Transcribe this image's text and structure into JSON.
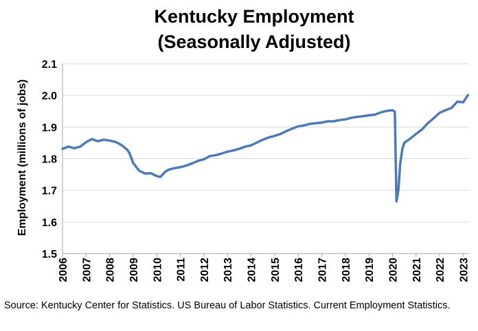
{
  "chart_data": {
    "type": "line",
    "title_line1": "Kentucky Employment",
    "title_line2": "(Seasonally Adjusted)",
    "xlabel": "",
    "ylabel": "Employment (millions of jobs)",
    "ylim": [
      1.5,
      2.1
    ],
    "yticks": [
      "1.5",
      "1.6",
      "1.7",
      "1.8",
      "1.9",
      "2.0",
      "2.1"
    ],
    "xlim": [
      2006,
      2023.25
    ],
    "xticks": [
      "2006",
      "2007",
      "2008",
      "2009",
      "2010",
      "2011",
      "2012",
      "2013",
      "2014",
      "2015",
      "2016",
      "2017",
      "2018",
      "2019",
      "2020",
      "2021",
      "2022",
      "2023"
    ],
    "grid": true,
    "line_color": "#4a7ab8",
    "series": [
      {
        "x": [
          2006.0,
          2006.25,
          2006.5,
          2006.75,
          2007.0,
          2007.25,
          2007.5,
          2007.75,
          2008.0,
          2008.25,
          2008.5,
          2008.75,
          2008.85,
          2009.0,
          2009.25,
          2009.5,
          2009.75,
          2010.0,
          2010.15,
          2010.35,
          2010.5,
          2010.75,
          2011.0,
          2011.25,
          2011.5,
          2011.75,
          2012.0,
          2012.25,
          2012.5,
          2012.75,
          2013.0,
          2013.25,
          2013.5,
          2013.75,
          2014.0,
          2014.25,
          2014.5,
          2014.75,
          2015.0,
          2015.25,
          2015.5,
          2015.75,
          2016.0,
          2016.25,
          2016.5,
          2016.75,
          2017.0,
          2017.25,
          2017.5,
          2017.75,
          2018.0,
          2018.25,
          2018.5,
          2018.75,
          2019.0,
          2019.25,
          2019.5,
          2019.75,
          2020.0,
          2020.1,
          2020.17,
          2020.25,
          2020.33,
          2020.42,
          2020.5,
          2020.75,
          2021.0,
          2021.25,
          2021.5,
          2021.75,
          2022.0,
          2022.25,
          2022.5,
          2022.75,
          2023.0,
          2023.2
        ],
        "values": [
          1.831,
          1.838,
          1.833,
          1.838,
          1.852,
          1.862,
          1.855,
          1.86,
          1.857,
          1.853,
          1.843,
          1.828,
          1.816,
          1.786,
          1.762,
          1.753,
          1.754,
          1.745,
          1.742,
          1.758,
          1.765,
          1.77,
          1.773,
          1.778,
          1.785,
          1.793,
          1.798,
          1.808,
          1.811,
          1.816,
          1.822,
          1.826,
          1.831,
          1.838,
          1.842,
          1.851,
          1.86,
          1.867,
          1.872,
          1.878,
          1.887,
          1.895,
          1.902,
          1.905,
          1.91,
          1.912,
          1.914,
          1.918,
          1.918,
          1.922,
          1.924,
          1.929,
          1.932,
          1.934,
          1.937,
          1.939,
          1.946,
          1.951,
          1.953,
          1.948,
          1.665,
          1.7,
          1.785,
          1.83,
          1.85,
          1.863,
          1.878,
          1.892,
          1.912,
          1.928,
          1.945,
          1.953,
          1.96,
          1.98,
          1.978,
          2.001
        ]
      }
    ]
  },
  "source_text": "Source: Kentucky Center for Statistics. US Bureau of Labor Statistics. Current Employment Statistics."
}
